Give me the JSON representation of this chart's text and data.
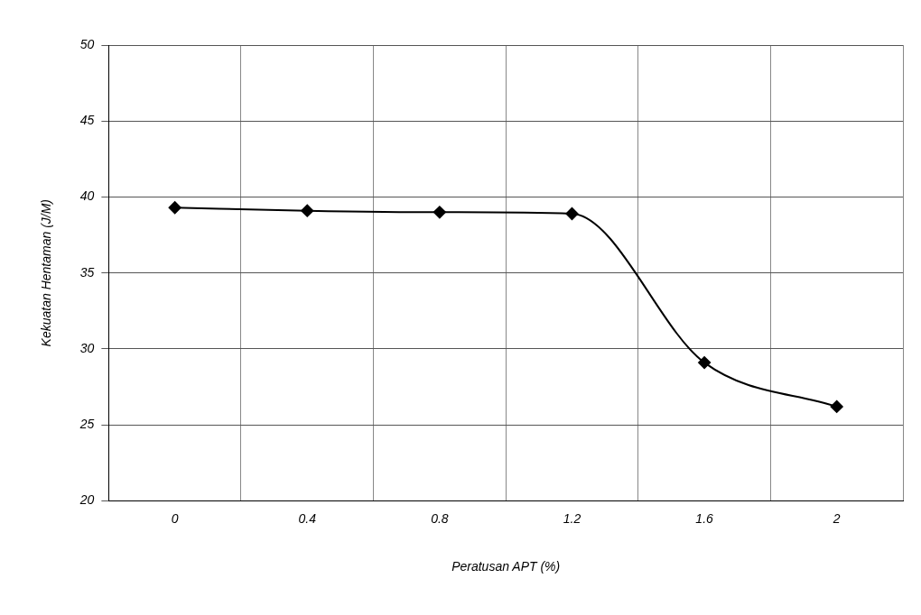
{
  "chart_data": {
    "type": "line",
    "xlabel": "Peratusan APT (%)",
    "ylabel": "Kekuatan Hentaman (J/M)",
    "categories": [
      "0",
      "0.4",
      "0.8",
      "1.2",
      "1.6",
      "2"
    ],
    "series": [
      {
        "color": "#000000",
        "values": [
          39.3,
          39.1,
          39.0,
          38.9,
          29.1,
          26.2
        ]
      }
    ],
    "ylim": [
      20,
      50
    ],
    "yticks": [
      20,
      25,
      30,
      35,
      40,
      45,
      50
    ],
    "grid": true,
    "marker": "diamond",
    "line_style": "solid",
    "legend": false
  }
}
